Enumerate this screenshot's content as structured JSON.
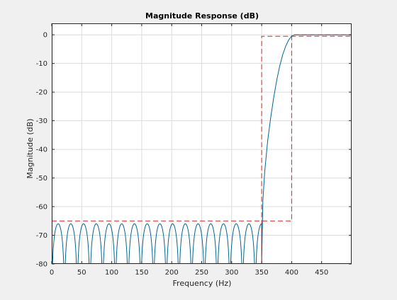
{
  "chart_data": {
    "type": "line",
    "title": "Magnitude Response (dB)",
    "xlabel": "Frequency (Hz)",
    "ylabel": "Magnitude (dB)",
    "xlim": [
      0,
      500
    ],
    "ylim": [
      -80,
      4
    ],
    "x_ticks": [
      0,
      50,
      100,
      150,
      200,
      250,
      300,
      350,
      400,
      450
    ],
    "y_ticks": [
      0,
      -10,
      -20,
      -30,
      -40,
      -50,
      -60,
      -70,
      -80
    ],
    "grid": true,
    "stopband_edge_hz": 350,
    "passband_edge_hz": 400,
    "stopband_ripple_lobes": 17,
    "stopband_peak_db": -66,
    "series": [
      {
        "role": "magnitude",
        "color": "#00668f",
        "style": "solid",
        "points": [
          [
            350,
            -80
          ],
          [
            352,
            -58
          ],
          [
            355,
            -48
          ],
          [
            360,
            -37
          ],
          [
            365,
            -29
          ],
          [
            370,
            -22
          ],
          [
            375,
            -16
          ],
          [
            380,
            -11
          ],
          [
            385,
            -7
          ],
          [
            390,
            -4
          ],
          [
            395,
            -1.8
          ],
          [
            400,
            -0.5
          ],
          [
            405,
            0
          ],
          [
            500,
            0
          ]
        ]
      },
      {
        "role": "specification-mask",
        "color": "#d62728",
        "style": "dashed",
        "points": [
          [
            0,
            -65
          ],
          [
            400,
            -65
          ],
          [
            400,
            0
          ],
          [
            500,
            0
          ]
        ]
      },
      {
        "role": "specification-mask",
        "color": "#d62728",
        "style": "dashed",
        "points": [
          [
            350,
            -80
          ],
          [
            350,
            -0.5
          ],
          [
            500,
            -0.5
          ]
        ]
      }
    ]
  }
}
